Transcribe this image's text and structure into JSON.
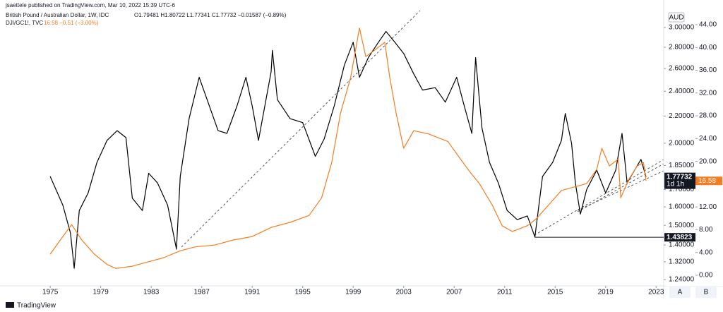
{
  "header": {
    "author_line": "jsaettele published on TradingView.com, Mar 10, 2022 15:39 UTC-6",
    "brand": "TradingView"
  },
  "chart_data": {
    "type": "line",
    "currency": "AUD",
    "log_scale": true,
    "grid": false,
    "xlim": [
      1971.3,
      2023.6
    ],
    "xticks": [
      1975,
      1979,
      1983,
      1987,
      1991,
      1995,
      1999,
      2003,
      2007,
      2011,
      2015,
      2019,
      2023
    ],
    "ylim": [
      1.213,
      3.184
    ],
    "yticks": [
      {
        "value": 3.0,
        "label": "3.00000"
      },
      {
        "value": 2.8,
        "label": "2.80000"
      },
      {
        "value": 2.6,
        "label": "2.60000"
      },
      {
        "value": 2.4,
        "label": "2.40000"
      },
      {
        "value": 2.2,
        "label": "2.20000"
      },
      {
        "value": 2.0,
        "label": "2.00000"
      },
      {
        "value": 1.85,
        "label": "1.85000"
      },
      {
        "value": 1.7,
        "label": "1.70000"
      },
      {
        "value": 1.6,
        "label": "1.60000"
      },
      {
        "value": 1.5,
        "label": "1.50000"
      },
      {
        "value": 1.4,
        "label": "1.40000"
      },
      {
        "value": 1.32,
        "label": "1.32000"
      },
      {
        "value": 1.24,
        "label": "1.24000"
      }
    ],
    "y2lim": [
      -1.86,
      46.48
    ],
    "y2ticks": [
      {
        "value": 44,
        "label": "44.00"
      },
      {
        "value": 40,
        "label": "40.00"
      },
      {
        "value": 36,
        "label": "36.00"
      },
      {
        "value": 32,
        "label": "32.00"
      },
      {
        "value": 28,
        "label": "28.00"
      },
      {
        "value": 24,
        "label": "24.00"
      },
      {
        "value": 20,
        "label": "20.00"
      },
      {
        "value": 12,
        "label": "12.00"
      },
      {
        "value": 8,
        "label": "8.00"
      },
      {
        "value": 4,
        "label": "4.00"
      },
      {
        "value": 0,
        "label": "0.00"
      }
    ],
    "series": [
      {
        "name": "British Pound / Australian Dollar, 1W, IDC",
        "info": "O1.79481 H1.80722 L1.77341 C1.77732 −0.01587 (−0.89%)",
        "color": "#000000",
        "x": [
          1975.0,
          1976.0,
          1976.6,
          1976.9,
          1977.3,
          1978.0,
          1978.7,
          1979.5,
          1980.3,
          1981.0,
          1981.5,
          1982.3,
          1982.8,
          1983.5,
          1984.3,
          1985.0,
          1985.3,
          1986.0,
          1986.8,
          1987.5,
          1988.3,
          1989.0,
          1989.8,
          1990.5,
          1991.0,
          1991.5,
          1992.5,
          1992.6,
          1993.0,
          1994.0,
          1995.0,
          1996.0,
          1996.7,
          1997.5,
          1998.3,
          1999.0,
          1999.5,
          2000.2,
          2001.0,
          2001.6,
          2002.3,
          2003.0,
          2003.8,
          2004.5,
          2005.5,
          2006.3,
          2007.2,
          2007.8,
          2008.4,
          2008.7,
          2009.2,
          2009.8,
          2010.5,
          2011.2,
          2012.0,
          2012.8,
          2013.4,
          2014.0,
          2014.8,
          2015.5,
          2015.8,
          2016.3,
          2016.6,
          2017.0,
          2017.5,
          2018.3,
          2019.0,
          2019.8,
          2020.3,
          2020.7,
          2021.3,
          2021.8,
          2022.2
        ],
        "values": [
          1.78,
          1.61,
          1.46,
          1.29,
          1.58,
          1.68,
          1.87,
          2.02,
          2.09,
          2.04,
          1.65,
          1.58,
          1.8,
          1.74,
          1.61,
          1.38,
          1.78,
          2.18,
          2.52,
          2.31,
          2.09,
          2.07,
          2.28,
          2.52,
          2.28,
          2.02,
          2.57,
          2.77,
          2.33,
          2.18,
          2.15,
          1.91,
          2.03,
          2.28,
          2.63,
          2.85,
          2.52,
          2.7,
          2.85,
          2.96,
          2.85,
          2.74,
          2.55,
          2.41,
          2.43,
          2.31,
          2.52,
          2.28,
          2.07,
          2.7,
          2.11,
          1.87,
          1.74,
          1.58,
          1.53,
          1.55,
          1.44,
          1.78,
          1.87,
          2.02,
          2.22,
          2.0,
          1.74,
          1.56,
          1.7,
          1.82,
          1.68,
          1.82,
          2.07,
          1.74,
          1.82,
          1.89,
          1.77732
        ]
      },
      {
        "name": "DJI/GC1!, TVC",
        "info": "16.58 −0.51 (−3.00%)",
        "color": "#f57c1f",
        "axis": "y2",
        "x": [
          1975.0,
          1975.8,
          1976.7,
          1977.5,
          1978.5,
          1979.5,
          1980.2,
          1981.5,
          1983.0,
          1984.0,
          1985.3,
          1986.5,
          1988.0,
          1989.5,
          1991.0,
          1992.5,
          1994.0,
          1995.5,
          1996.5,
          1997.3,
          1998.0,
          1998.8,
          1999.5,
          2000.0,
          2000.8,
          2001.5,
          2001.9,
          2002.4,
          2003.0,
          2003.8,
          2005.0,
          2006.5,
          2007.5,
          2008.3,
          2009.0,
          2010.0,
          2010.8,
          2011.6,
          2012.8,
          2013.5,
          2014.5,
          2015.5,
          2016.5,
          2017.5,
          2018.3,
          2018.7,
          2019.3,
          2020.0,
          2020.2,
          2020.8,
          2021.5,
          2022.0,
          2022.2
        ],
        "values": [
          3.7,
          6.2,
          8.9,
          6.2,
          3.7,
          1.9,
          1.2,
          1.6,
          2.5,
          3.1,
          4.3,
          5.0,
          5.3,
          6.2,
          6.8,
          8.4,
          9.3,
          10.5,
          13.6,
          19.8,
          28.5,
          34.7,
          43.4,
          38.4,
          39.7,
          40.9,
          34.7,
          28.5,
          22.3,
          25.4,
          24.8,
          23.5,
          20.4,
          18.0,
          16.1,
          12.4,
          8.7,
          7.7,
          8.7,
          9.9,
          12.4,
          14.9,
          15.5,
          16.1,
          18.6,
          22.3,
          19.2,
          20.4,
          13.6,
          16.7,
          19.2,
          19.8,
          16.58
        ]
      }
    ],
    "y_markers": [
      {
        "value": 1.77732,
        "sublabel": "1d 1h"
      },
      {
        "value": 1.43823
      }
    ],
    "y2_markers": [
      {
        "value": 16.58
      }
    ],
    "bottom_buttons": [
      "A",
      "B"
    ]
  }
}
